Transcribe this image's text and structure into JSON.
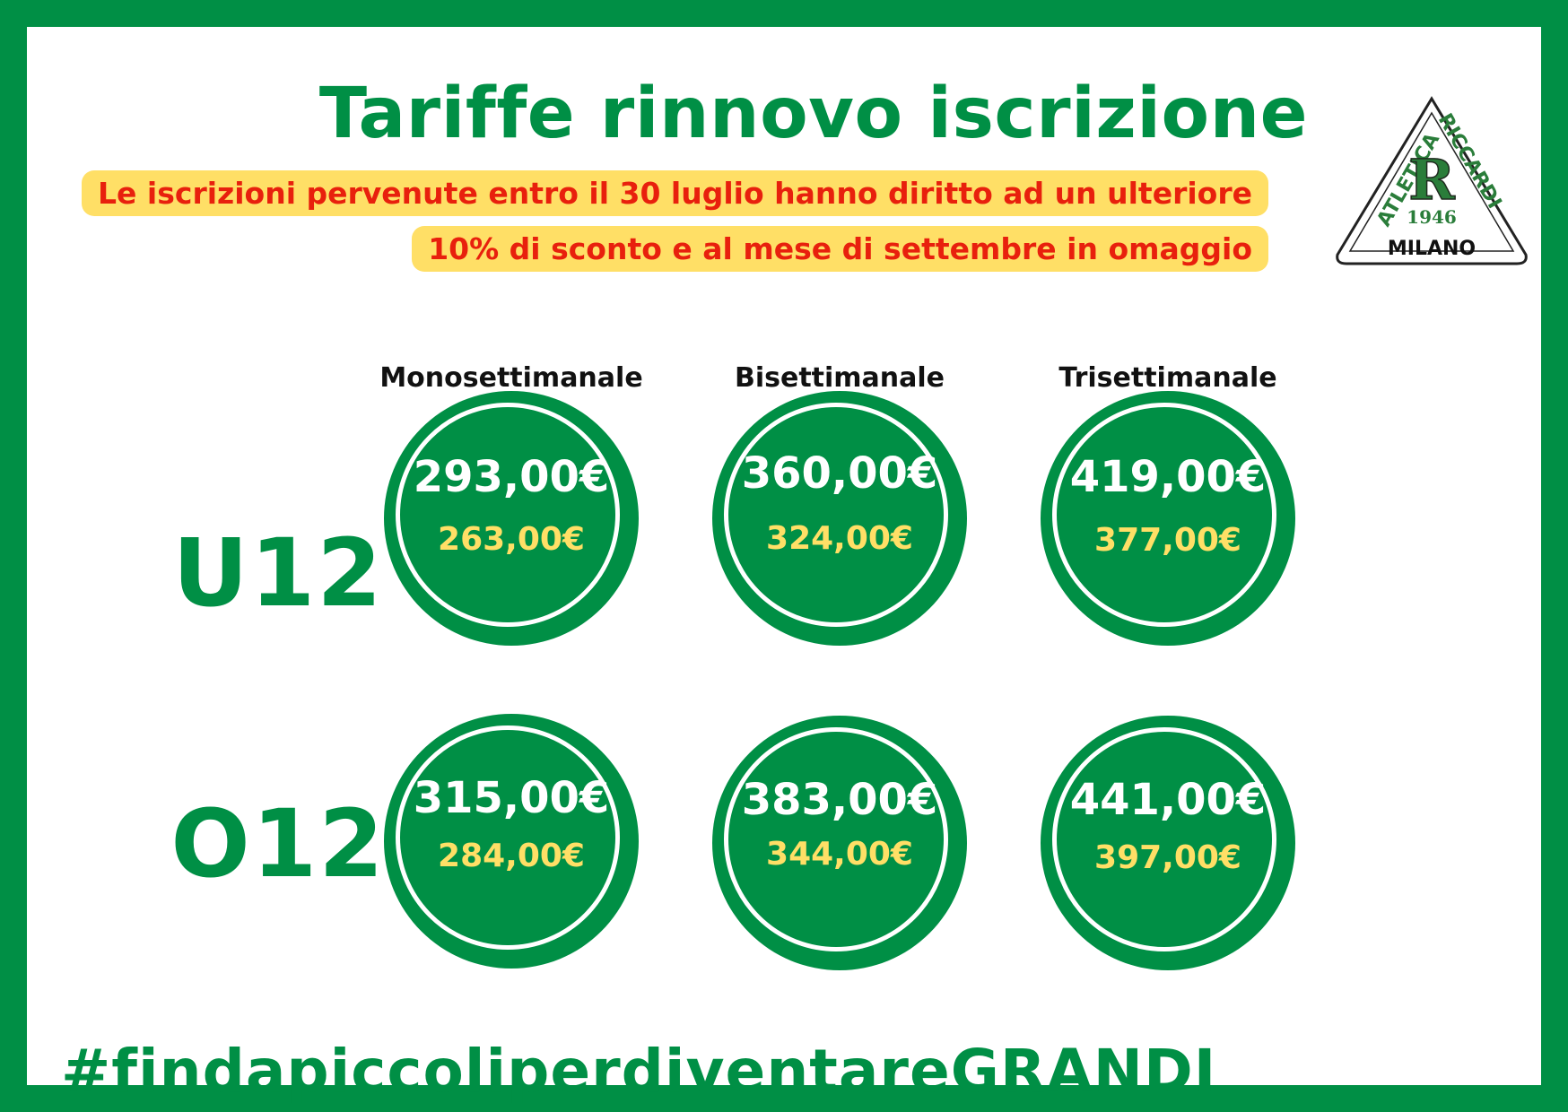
{
  "title": "Tariffe rinnovo iscrizione",
  "notice": {
    "line1": "Le iscrizioni pervenute entro il 30 luglio hanno diritto ad un ulteriore",
    "line2": "10% di sconto e al mese di settembre in omaggio"
  },
  "logo": {
    "top_text": "ATLETICA RICCARDI",
    "letter": "R",
    "year": "1946",
    "city": "MILANO"
  },
  "columns": [
    "Monosettimanale",
    "Bisettimanale",
    "Trisettimanale"
  ],
  "rows": [
    {
      "label": "U12",
      "prices": [
        {
          "full": "293,00€",
          "discount": "263,00€"
        },
        {
          "full": "360,00€",
          "discount": "324,00€"
        },
        {
          "full": "419,00€",
          "discount": "377,00€"
        }
      ]
    },
    {
      "label": "O12",
      "prices": [
        {
          "full": "315,00€",
          "discount": "284,00€"
        },
        {
          "full": "383,00€",
          "discount": "344,00€"
        },
        {
          "full": "441,00€",
          "discount": "397,00€"
        }
      ]
    }
  ],
  "hashtag": "#findapiccoliperdiventareGRANDI",
  "colors": {
    "brand_green": "#008f45",
    "highlight_yellow": "#ffdf66",
    "alert_red": "#e8200d"
  }
}
